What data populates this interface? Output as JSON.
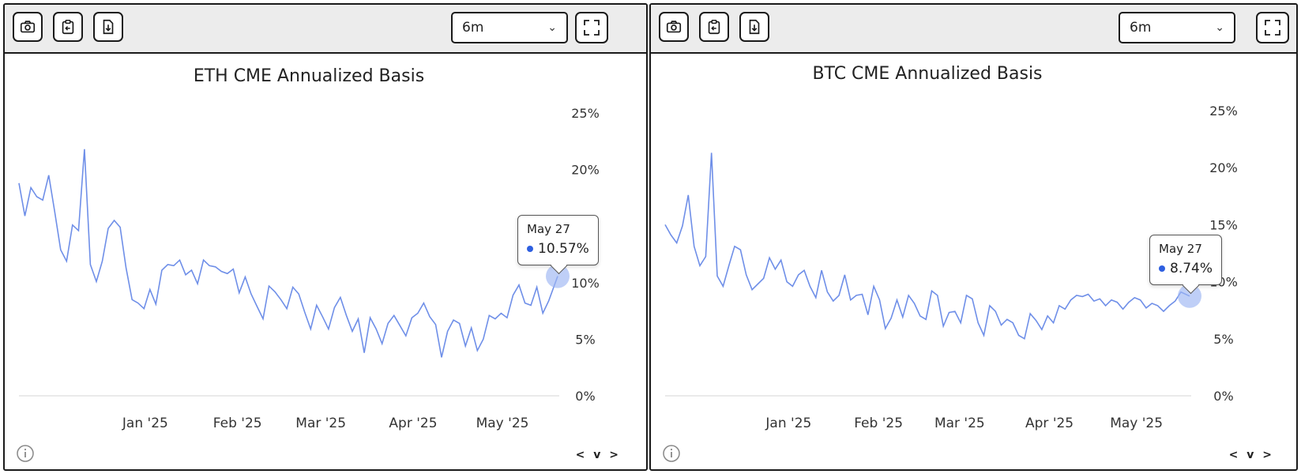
{
  "panels": [
    {
      "range_selector": {
        "value": "6m"
      },
      "tooltip": {
        "date": "May 27",
        "value": "10.57%"
      },
      "nav": "< v >",
      "chart_data": {
        "type": "line",
        "title": "ETH CME Annualized Basis",
        "xlabel": "",
        "ylabel": "",
        "ylim": [
          0,
          25
        ],
        "y_tick_labels": [
          "25%",
          "20%",
          "15%",
          "10%",
          "5%",
          "0%"
        ],
        "x_tick_labels": [
          "Jan '25",
          "Feb '25",
          "Mar '25",
          "Apr '25",
          "May '25"
        ],
        "x_ticks": [
          "2025-01-01",
          "2025-02-01",
          "2025-03-01",
          "2025-04-01",
          "2025-05-01"
        ],
        "x_range": [
          "2024-11-27",
          "2025-05-27"
        ],
        "grid": false,
        "line_color": "#6f8fe8",
        "x": [
          "2024-11-27",
          "2024-11-29",
          "2024-12-01",
          "2024-12-03",
          "2024-12-05",
          "2024-12-07",
          "2024-12-09",
          "2024-12-11",
          "2024-12-13",
          "2024-12-15",
          "2024-12-17",
          "2024-12-19",
          "2024-12-21",
          "2024-12-23",
          "2024-12-25",
          "2024-12-27",
          "2024-12-29",
          "2024-12-31",
          "2025-01-02",
          "2025-01-04",
          "2025-01-06",
          "2025-01-08",
          "2025-01-10",
          "2025-01-12",
          "2025-01-14",
          "2025-01-16",
          "2025-01-18",
          "2025-01-20",
          "2025-01-22",
          "2025-01-24",
          "2025-01-26",
          "2025-01-28",
          "2025-01-30",
          "2025-02-01",
          "2025-02-03",
          "2025-02-05",
          "2025-02-07",
          "2025-02-09",
          "2025-02-11",
          "2025-02-13",
          "2025-02-15",
          "2025-02-17",
          "2025-02-19",
          "2025-02-21",
          "2025-02-23",
          "2025-02-25",
          "2025-02-27",
          "2025-03-01",
          "2025-03-03",
          "2025-03-05",
          "2025-03-07",
          "2025-03-09",
          "2025-03-11",
          "2025-03-13",
          "2025-03-15",
          "2025-03-17",
          "2025-03-19",
          "2025-03-21",
          "2025-03-23",
          "2025-03-25",
          "2025-03-27",
          "2025-03-29",
          "2025-03-31",
          "2025-04-02",
          "2025-04-04",
          "2025-04-06",
          "2025-04-08",
          "2025-04-10",
          "2025-04-12",
          "2025-04-14",
          "2025-04-16",
          "2025-04-18",
          "2025-04-20",
          "2025-04-22",
          "2025-04-24",
          "2025-04-26",
          "2025-04-28",
          "2025-04-30",
          "2025-05-02",
          "2025-05-04",
          "2025-05-06",
          "2025-05-08",
          "2025-05-10",
          "2025-05-12",
          "2025-05-14",
          "2025-05-16",
          "2025-05-18",
          "2025-05-20",
          "2025-05-22",
          "2025-05-24",
          "2025-05-27"
        ],
        "values": [
          18.8,
          15.9,
          18.4,
          17.6,
          17.3,
          19.5,
          16.3,
          12.9,
          11.9,
          15.1,
          14.6,
          21.8,
          11.6,
          10.1,
          11.9,
          14.8,
          15.5,
          14.9,
          11.3,
          8.5,
          8.2,
          7.7,
          9.4,
          8.1,
          11.1,
          11.6,
          11.5,
          12.0,
          10.7,
          11.1,
          9.9,
          12.0,
          11.5,
          11.4,
          11.0,
          10.8,
          11.2,
          9.1,
          10.5,
          9.0,
          7.9,
          6.8,
          9.7,
          9.2,
          8.5,
          7.7,
          9.6,
          9.0,
          7.4,
          5.9,
          8.0,
          7.0,
          5.9,
          7.8,
          8.7,
          7.1,
          5.7,
          6.8,
          3.8,
          6.9,
          5.9,
          4.6,
          6.4,
          7.1,
          6.2,
          5.3,
          6.9,
          7.3,
          8.2,
          7.0,
          6.3,
          3.4,
          5.7,
          6.7,
          6.4,
          4.4,
          6.0,
          4.0,
          5.0,
          7.1,
          6.8,
          7.3,
          6.9,
          8.9,
          9.8,
          8.2,
          8.0,
          9.6,
          7.3,
          8.4,
          10.57
        ]
      }
    },
    {
      "range_selector": {
        "value": "6m"
      },
      "tooltip": {
        "date": "May 27",
        "value": "8.74%"
      },
      "nav": "< v >",
      "chart_data": {
        "type": "line",
        "title": "BTC CME Annualized Basis",
        "xlabel": "",
        "ylabel": "",
        "ylim": [
          0,
          25
        ],
        "y_tick_labels": [
          "25%",
          "20%",
          "15%",
          "10%",
          "5%",
          "0%"
        ],
        "x_tick_labels": [
          "Jan '25",
          "Feb '25",
          "Mar '25",
          "Apr '25",
          "May '25"
        ],
        "x_ticks": [
          "2025-01-01",
          "2025-02-01",
          "2025-03-01",
          "2025-04-01",
          "2025-05-01"
        ],
        "x_range": [
          "2024-11-27",
          "2025-05-27"
        ],
        "grid": false,
        "line_color": "#6f8fe8",
        "x": [
          "2024-11-27",
          "2024-11-29",
          "2024-12-01",
          "2024-12-03",
          "2024-12-05",
          "2024-12-07",
          "2024-12-09",
          "2024-12-11",
          "2024-12-13",
          "2024-12-15",
          "2024-12-17",
          "2024-12-19",
          "2024-12-21",
          "2024-12-23",
          "2024-12-25",
          "2024-12-27",
          "2024-12-29",
          "2024-12-31",
          "2025-01-02",
          "2025-01-04",
          "2025-01-06",
          "2025-01-08",
          "2025-01-10",
          "2025-01-12",
          "2025-01-14",
          "2025-01-16",
          "2025-01-18",
          "2025-01-20",
          "2025-01-22",
          "2025-01-24",
          "2025-01-26",
          "2025-01-28",
          "2025-01-30",
          "2025-02-01",
          "2025-02-03",
          "2025-02-05",
          "2025-02-07",
          "2025-02-09",
          "2025-02-11",
          "2025-02-13",
          "2025-02-15",
          "2025-02-17",
          "2025-02-19",
          "2025-02-21",
          "2025-02-23",
          "2025-02-25",
          "2025-02-27",
          "2025-03-01",
          "2025-03-03",
          "2025-03-05",
          "2025-03-07",
          "2025-03-09",
          "2025-03-11",
          "2025-03-13",
          "2025-03-15",
          "2025-03-17",
          "2025-03-19",
          "2025-03-21",
          "2025-03-23",
          "2025-03-25",
          "2025-03-27",
          "2025-03-29",
          "2025-03-31",
          "2025-04-02",
          "2025-04-04",
          "2025-04-06",
          "2025-04-08",
          "2025-04-10",
          "2025-04-12",
          "2025-04-14",
          "2025-04-16",
          "2025-04-18",
          "2025-04-20",
          "2025-04-22",
          "2025-04-24",
          "2025-04-26",
          "2025-04-28",
          "2025-04-30",
          "2025-05-02",
          "2025-05-04",
          "2025-05-06",
          "2025-05-08",
          "2025-05-10",
          "2025-05-12",
          "2025-05-14",
          "2025-05-16",
          "2025-05-18",
          "2025-05-20",
          "2025-05-22",
          "2025-05-24",
          "2025-05-27"
        ],
        "values": [
          15.0,
          14.1,
          13.4,
          14.9,
          17.6,
          13.1,
          11.4,
          12.2,
          21.3,
          10.5,
          9.6,
          11.4,
          13.1,
          12.8,
          10.6,
          9.3,
          9.8,
          10.3,
          12.1,
          11.1,
          11.9,
          10.0,
          9.6,
          10.6,
          11.0,
          9.6,
          8.6,
          11.0,
          9.1,
          8.3,
          8.8,
          10.6,
          8.4,
          8.8,
          8.9,
          7.1,
          9.6,
          8.4,
          5.9,
          6.8,
          8.4,
          6.9,
          8.8,
          8.1,
          7.0,
          6.7,
          9.2,
          8.8,
          6.1,
          7.3,
          7.4,
          6.4,
          8.8,
          8.5,
          6.4,
          5.3,
          7.9,
          7.4,
          6.2,
          6.7,
          6.4,
          5.3,
          5.0,
          7.2,
          6.6,
          5.8,
          7.0,
          6.4,
          7.9,
          7.6,
          8.4,
          8.8,
          8.7,
          8.9,
          8.3,
          8.5,
          7.9,
          8.4,
          8.2,
          7.6,
          8.2,
          8.6,
          8.4,
          7.7,
          8.1,
          7.9,
          7.4,
          7.9,
          8.3,
          9.1,
          8.74
        ]
      }
    }
  ]
}
